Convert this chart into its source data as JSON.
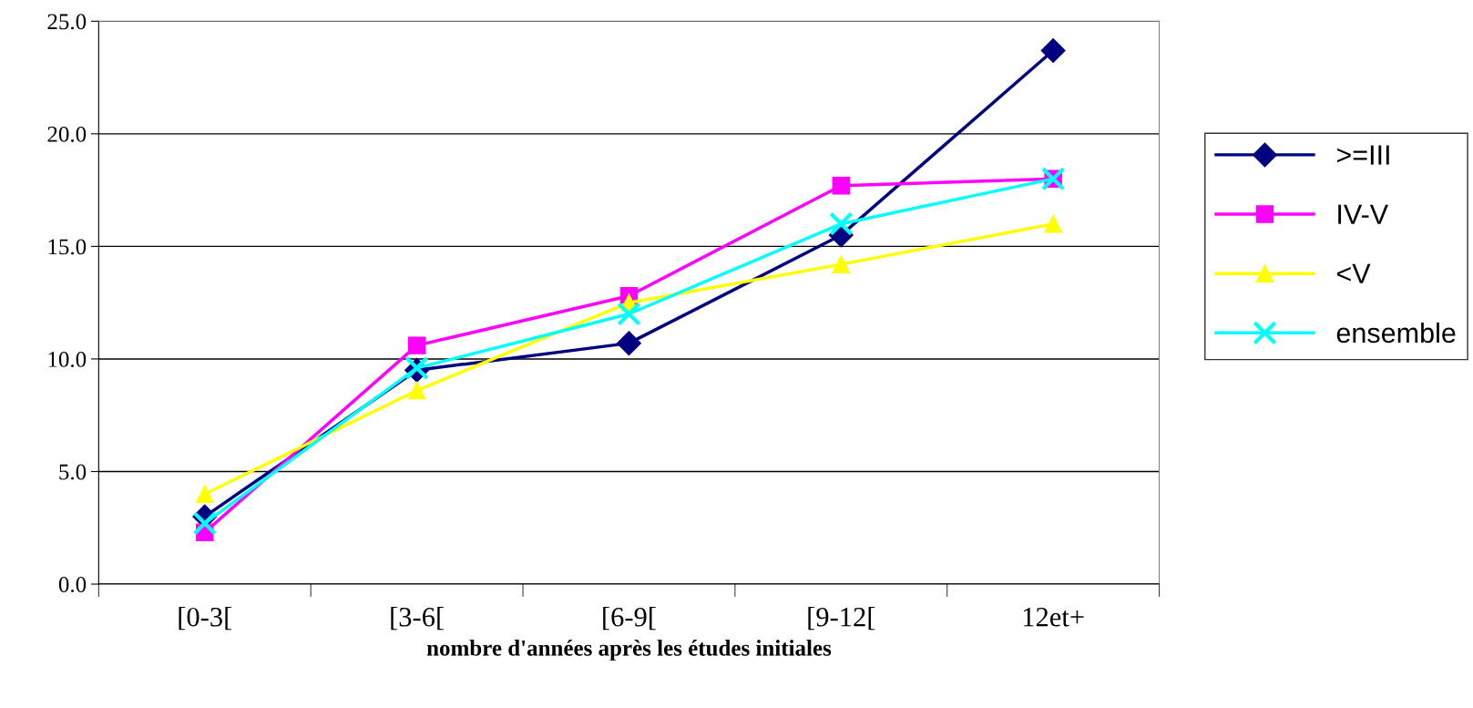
{
  "chart_data": {
    "type": "line",
    "xlabel": "nombre d'années après les études initiales",
    "categories": [
      "[0-3[",
      "[3-6[",
      "[6-9[",
      "[9-12[",
      "12et+"
    ],
    "series": [
      {
        "name": ">=III",
        "color": "#000080",
        "marker": "diamond",
        "values": [
          3.0,
          9.5,
          10.7,
          15.5,
          23.7
        ]
      },
      {
        "name": "IV-V",
        "color": "#ff00ff",
        "marker": "square",
        "values": [
          2.3,
          10.6,
          12.8,
          17.7,
          18.0
        ]
      },
      {
        "name": "<V",
        "color": "#ffff00",
        "marker": "triangle",
        "values": [
          4.0,
          8.6,
          12.5,
          14.2,
          16.0
        ]
      },
      {
        "name": "ensemble",
        "color": "#00ffff",
        "marker": "cross",
        "values": [
          2.7,
          9.6,
          12.0,
          16.0,
          18.0
        ]
      }
    ],
    "ylim": [
      0,
      25
    ],
    "yticks": [
      {
        "value": 0,
        "label": "0.0"
      },
      {
        "value": 5,
        "label": "5.0"
      },
      {
        "value": 10,
        "label": "10.0"
      },
      {
        "value": 15,
        "label": "15.0"
      },
      {
        "value": 20,
        "label": "20.0"
      },
      {
        "value": 25,
        "label": "25.0"
      }
    ],
    "grid": "y",
    "legend": "right"
  }
}
